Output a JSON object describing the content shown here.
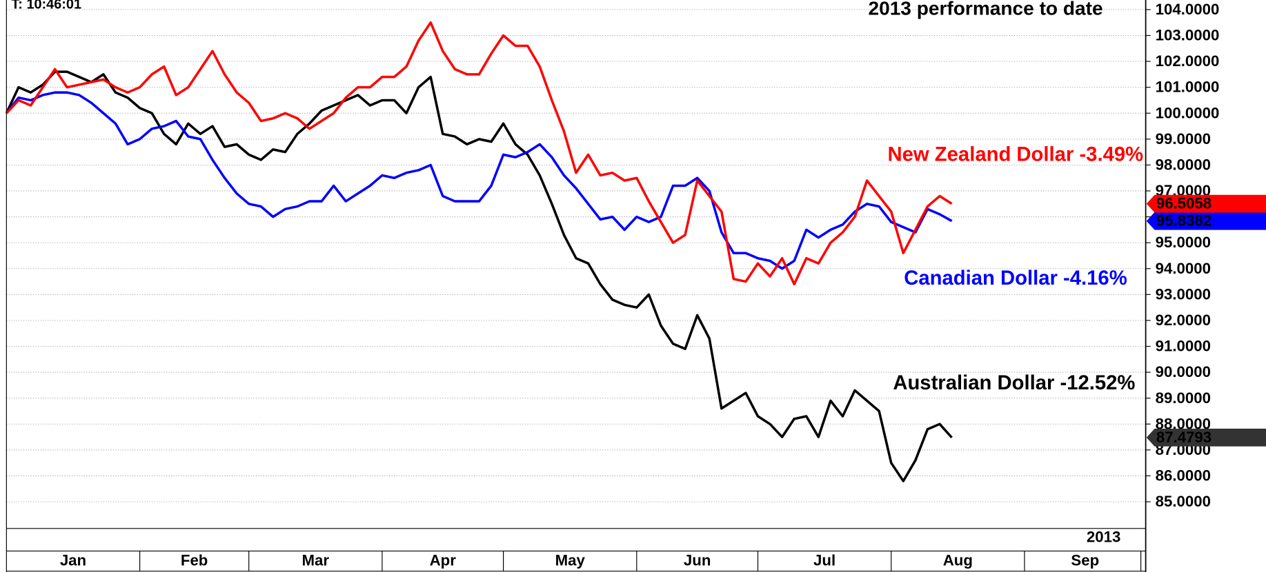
{
  "chart_data": {
    "type": "line",
    "title": "2013 performance to date",
    "time_label": "T: 10:46:01",
    "year_label": "2013",
    "categories": [
      "Jan",
      null,
      null,
      null,
      null,
      null,
      null,
      null,
      null,
      null,
      null,
      "Feb",
      null,
      null,
      null,
      null,
      null,
      null,
      null,
      null,
      "Mar",
      null,
      null,
      null,
      null,
      null,
      null,
      null,
      null,
      null,
      null,
      "Apr",
      null,
      null,
      null,
      null,
      null,
      null,
      null,
      null,
      null,
      "May",
      null,
      null,
      null,
      null,
      null,
      null,
      null,
      null,
      null,
      null,
      "Jun",
      null,
      null,
      null,
      null,
      null,
      null,
      null,
      null,
      null,
      "Jul",
      null,
      null,
      null,
      null,
      null,
      null,
      null,
      null,
      null,
      null,
      "Aug",
      null,
      null,
      null,
      null,
      null,
      null,
      null,
      null,
      null,
      null,
      "Sep",
      null,
      null,
      null,
      null,
      null,
      null,
      null,
      null,
      null
    ],
    "series": [
      {
        "name": "New Zealand Dollar -3.49%",
        "color": "#ff0000",
        "values": [
          100.0,
          100.5,
          100.3,
          101.0,
          101.7,
          101.0,
          101.1,
          101.2,
          101.3,
          101.0,
          100.8,
          101.0,
          101.5,
          101.8,
          100.7,
          101.0,
          101.7,
          102.4,
          101.5,
          100.8,
          100.4,
          99.7,
          99.8,
          100.0,
          99.8,
          99.4,
          99.7,
          100.0,
          100.6,
          101.0,
          101.0,
          101.4,
          101.4,
          101.8,
          102.8,
          103.5,
          102.4,
          101.7,
          101.5,
          101.5,
          102.3,
          103.0,
          102.6,
          102.6,
          101.8,
          100.5,
          99.3,
          97.7,
          98.4,
          97.6,
          97.7,
          97.4,
          97.5,
          96.6,
          95.8,
          95.0,
          95.3,
          97.4,
          96.8,
          96.2,
          93.6,
          93.5,
          94.2,
          93.7,
          94.4,
          93.4,
          94.4,
          94.2,
          95.0,
          95.4,
          96.0,
          97.4,
          96.8,
          96.2,
          94.6,
          95.5,
          96.4,
          96.8,
          96.5058,
          null,
          null,
          null,
          null,
          null,
          null,
          null,
          null,
          null,
          null,
          null,
          null,
          null,
          null,
          null
        ]
      },
      {
        "name": "Canadian Dollar -4.16%",
        "color": "#0000ff",
        "values": [
          100.0,
          100.6,
          100.5,
          100.7,
          100.8,
          100.8,
          100.7,
          100.4,
          100.0,
          99.6,
          98.8,
          99.0,
          99.4,
          99.5,
          99.7,
          99.1,
          99.0,
          98.2,
          97.5,
          96.9,
          96.5,
          96.4,
          96.0,
          96.3,
          96.4,
          96.6,
          96.6,
          97.2,
          96.6,
          96.9,
          97.2,
          97.6,
          97.5,
          97.7,
          97.8,
          98.0,
          96.8,
          96.6,
          96.6,
          96.6,
          97.2,
          98.4,
          98.3,
          98.5,
          98.8,
          98.3,
          97.6,
          97.1,
          96.5,
          95.9,
          96.0,
          95.5,
          96.0,
          95.8,
          96.0,
          97.2,
          97.2,
          97.5,
          97.0,
          95.4,
          94.6,
          94.6,
          94.4,
          94.3,
          94.0,
          94.3,
          95.5,
          95.2,
          95.5,
          95.7,
          96.2,
          96.5,
          96.4,
          95.8,
          95.6,
          95.4,
          96.3,
          96.1,
          95.8382,
          null,
          null,
          null,
          null,
          null,
          null,
          null,
          null,
          null,
          null,
          null,
          null,
          null,
          null,
          null
        ]
      },
      {
        "name": "Australian Dollar -12.52%",
        "color": "#000000",
        "tag_color": "#333333",
        "values": [
          100.0,
          101.0,
          100.8,
          101.1,
          101.6,
          101.6,
          101.4,
          101.2,
          101.5,
          100.8,
          100.6,
          100.2,
          100.0,
          99.2,
          98.8,
          99.6,
          99.2,
          99.5,
          98.7,
          98.8,
          98.4,
          98.2,
          98.6,
          98.5,
          99.2,
          99.6,
          100.1,
          100.3,
          100.5,
          100.7,
          100.3,
          100.5,
          100.5,
          100.0,
          101.0,
          101.4,
          99.2,
          99.1,
          98.8,
          99.0,
          98.9,
          99.6,
          98.8,
          98.4,
          97.6,
          96.5,
          95.3,
          94.4,
          94.2,
          93.4,
          92.8,
          92.6,
          92.5,
          93.0,
          91.8,
          91.1,
          90.9,
          92.2,
          91.3,
          88.6,
          88.9,
          89.2,
          88.3,
          88.0,
          87.5,
          88.2,
          88.3,
          87.5,
          88.9,
          88.3,
          89.3,
          88.9,
          88.5,
          86.5,
          85.8,
          86.6,
          87.8,
          88.0,
          87.4793,
          null,
          null,
          null,
          null,
          null,
          null,
          null,
          null,
          null,
          null,
          null,
          null,
          null,
          null,
          null
        ]
      }
    ],
    "ylim": [
      83.97,
      104.37
    ],
    "yticks": [
      {
        "value": 85,
        "label": "85.0000"
      },
      {
        "value": 86,
        "label": "86.0000"
      },
      {
        "value": 87,
        "label": "87.0000"
      },
      {
        "value": 88,
        "label": "88.0000"
      },
      {
        "value": 89,
        "label": "89.0000"
      },
      {
        "value": 90,
        "label": "90.0000"
      },
      {
        "value": 91,
        "label": "91.0000"
      },
      {
        "value": 92,
        "label": "92.0000"
      },
      {
        "value": 93,
        "label": "93.0000"
      },
      {
        "value": 94,
        "label": "94.0000"
      },
      {
        "value": 95,
        "label": "95.0000"
      },
      {
        "value": 96,
        "label": "96.0000"
      },
      {
        "value": 97,
        "label": "97.0000"
      },
      {
        "value": 98,
        "label": "98.0000"
      },
      {
        "value": 99,
        "label": "99.0000"
      },
      {
        "value": 100,
        "label": "100.0000"
      },
      {
        "value": 101,
        "label": "101.0000"
      },
      {
        "value": 102,
        "label": "102.0000"
      },
      {
        "value": 103,
        "label": "103.0000"
      },
      {
        "value": 104,
        "label": "104.0000"
      }
    ],
    "grid": true
  }
}
